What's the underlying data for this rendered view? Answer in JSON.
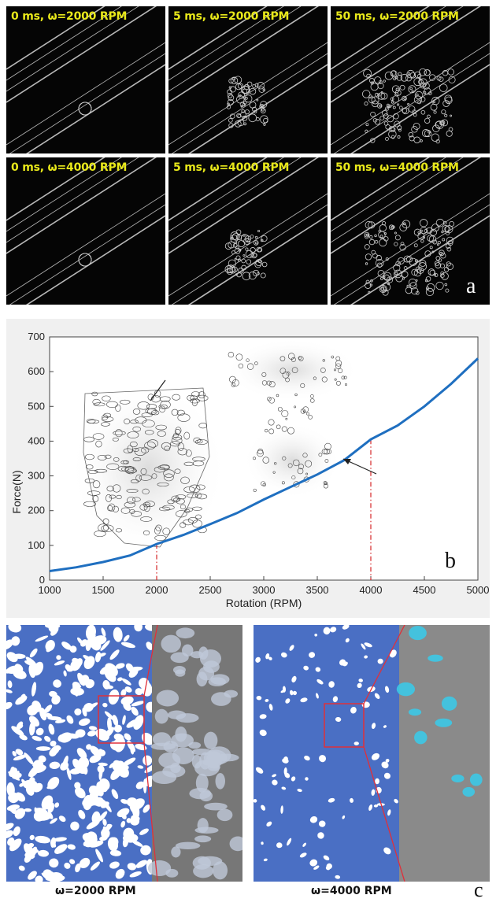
{
  "panel_a": {
    "letter": "a",
    "frames": [
      {
        "label": "0 ms, ω=2000 RPM"
      },
      {
        "label": "5 ms, ω=2000 RPM"
      },
      {
        "label": "50 ms, ω=2000 RPM"
      },
      {
        "label": "0 ms, ω=4000 RPM"
      },
      {
        "label": "5 ms, ω=4000 RPM"
      },
      {
        "label": "50 ms, ω=4000 RPM"
      }
    ]
  },
  "chart_data": {
    "type": "line",
    "title": "",
    "xlabel": "Rotation (RPM)",
    "ylabel": "Force(N)",
    "xlim": [
      1000,
      5000
    ],
    "ylim": [
      0,
      700
    ],
    "xticks": [
      1000,
      1500,
      2000,
      2500,
      3000,
      3500,
      4000,
      4500,
      5000
    ],
    "yticks": [
      0,
      100,
      200,
      300,
      400,
      500,
      600,
      700
    ],
    "grid": false,
    "series": [
      {
        "color": "#1f6fc0",
        "x": [
          1000,
          1250,
          1500,
          1750,
          2000,
          2250,
          2500,
          2750,
          3000,
          3250,
          3500,
          3750,
          4000,
          4250,
          4500,
          4750,
          5000
        ],
        "y": [
          26,
          37,
          52,
          71,
          104,
          130,
          161,
          193,
          232,
          268,
          304,
          345,
          405,
          445,
          500,
          565,
          638
        ]
      }
    ],
    "markers": [
      {
        "x": 2000,
        "y": 104,
        "color": "#d62728",
        "style": "dash-dot"
      },
      {
        "x": 4000,
        "y": 405,
        "color": "#d62728",
        "style": "dash-dot"
      }
    ],
    "panel_letter": "b"
  },
  "panel_c": {
    "letter": "c",
    "captions": [
      "ω=2000 RPM",
      "ω=4000 RPM"
    ],
    "colors": {
      "matrix": "#4a6fc4",
      "pore": "#ffffff",
      "zoom_box": "#e0303a",
      "highlight": "#3cc8e6"
    }
  }
}
